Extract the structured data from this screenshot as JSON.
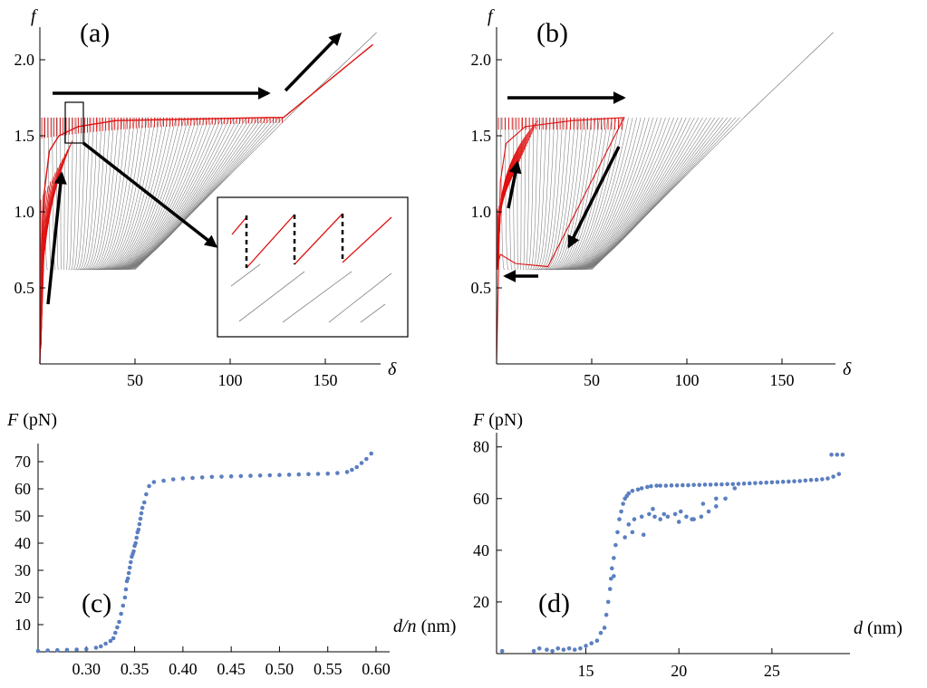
{
  "chart_data": [
    {
      "panel": "a",
      "type": "line",
      "panel_label": "(a)",
      "xlabel": "δ",
      "ylabel": "f",
      "xticks": [
        "50",
        "100",
        "150"
      ],
      "yticks": [
        "0.5",
        "1.0",
        "1.5",
        "2.0"
      ],
      "xlim": [
        0,
        180
      ],
      "ylim": [
        0,
        2.2
      ],
      "description_series": [
        {
          "name": "family of equilibrium branches",
          "color": "#6e6e6e",
          "count": 60,
          "plateau": 1.62,
          "lower_plateau": 0.62,
          "onset_max": 130,
          "merge_start": 50
        },
        {
          "name": "loading path (red)",
          "color": "#e01010",
          "x": [
            0,
            2,
            5,
            10,
            20,
            40,
            80,
            120,
            128,
            175
          ],
          "y": [
            0,
            1.1,
            1.4,
            1.5,
            1.56,
            1.6,
            1.61,
            1.62,
            1.62,
            2.1
          ]
        }
      ],
      "inset": true
    },
    {
      "panel": "b",
      "type": "line",
      "panel_label": "(b)",
      "xlabel": "δ",
      "ylabel": "f",
      "xticks": [
        "50",
        "100",
        "150"
      ],
      "yticks": [
        "0.5",
        "1.0",
        "1.5",
        "2.0"
      ],
      "xlim": [
        0,
        180
      ],
      "ylim": [
        0,
        2.2
      ],
      "description_series": [
        {
          "name": "family of equilibrium branches",
          "color": "#6e6e6e",
          "count": 60,
          "plateau": 1.62,
          "lower_plateau": 0.62,
          "onset_max": 130,
          "merge_start": 50
        },
        {
          "name": "hysteresis loop (red)",
          "color": "#e01010",
          "x": [
            0,
            2,
            5,
            15,
            40,
            67,
            27,
            10,
            2,
            0
          ],
          "y": [
            0,
            1.2,
            1.45,
            1.56,
            1.6,
            1.62,
            0.64,
            0.66,
            0.72,
            0.62
          ]
        }
      ]
    },
    {
      "panel": "c",
      "type": "scatter",
      "panel_label": "(c)",
      "xlabel_var": "d/n",
      "xlabel_unit": "(nm)",
      "ylabel_var": "F",
      "ylabel_unit": "(pN)",
      "xticks": [
        "0.30",
        "0.35",
        "0.40",
        "0.45",
        "0.50",
        "0.55",
        "0.60"
      ],
      "yticks": [
        "10",
        "20",
        "30",
        "40",
        "50",
        "60",
        "70"
      ],
      "xlim": [
        0.25,
        0.6
      ],
      "ylim": [
        0,
        75
      ],
      "x": [
        0.25,
        0.26,
        0.27,
        0.28,
        0.29,
        0.3,
        0.31,
        0.315,
        0.32,
        0.325,
        0.328,
        0.33,
        0.332,
        0.334,
        0.336,
        0.338,
        0.34,
        0.341,
        0.342,
        0.343,
        0.344,
        0.345,
        0.346,
        0.347,
        0.348,
        0.349,
        0.35,
        0.351,
        0.352,
        0.353,
        0.354,
        0.355,
        0.356,
        0.357,
        0.358,
        0.36,
        0.362,
        0.365,
        0.37,
        0.38,
        0.39,
        0.4,
        0.41,
        0.42,
        0.43,
        0.44,
        0.45,
        0.46,
        0.47,
        0.48,
        0.49,
        0.5,
        0.51,
        0.52,
        0.53,
        0.54,
        0.55,
        0.56,
        0.57,
        0.575,
        0.58,
        0.585,
        0.59,
        0.595
      ],
      "y": [
        0.3,
        0.5,
        0.6,
        0.7,
        0.8,
        1,
        1.5,
        2,
        3,
        4,
        5,
        7,
        9,
        11,
        14,
        17,
        20,
        23,
        26,
        27,
        29,
        31,
        33,
        35,
        36,
        37,
        39,
        40,
        42,
        44,
        45,
        47,
        49,
        51,
        53,
        55,
        58,
        61,
        62.5,
        63,
        63.5,
        63.8,
        64,
        64.2,
        64.4,
        64.5,
        64.6,
        64.7,
        64.8,
        64.9,
        65,
        65.1,
        65.2,
        65.3,
        65.4,
        65.5,
        65.6,
        65.8,
        66.2,
        67,
        68,
        69.5,
        71,
        73
      ]
    },
    {
      "panel": "d",
      "type": "scatter",
      "panel_label": "(d)",
      "xlabel_var": "d",
      "xlabel_unit": "(nm)",
      "ylabel_var": "F",
      "ylabel_unit": "(pN)",
      "xticks": [
        "15",
        "20",
        "25"
      ],
      "yticks": [
        "20",
        "40",
        "60",
        "80"
      ],
      "xlim": [
        10.2,
        29
      ],
      "ylim": [
        0,
        82
      ],
      "x": [
        10.5,
        12.2,
        12.5,
        12.9,
        13.2,
        13.5,
        13.8,
        14.1,
        14.4,
        14.7,
        15.0,
        15.3,
        15.6,
        15.8,
        16.0,
        16.1,
        16.2,
        16.3,
        16.35,
        16.4,
        16.5,
        16.6,
        16.7,
        16.8,
        16.9,
        17.0,
        17.1,
        17.2,
        17.3,
        17.5,
        17.8,
        18.0,
        18.3,
        18.5,
        18.8,
        19.0,
        19.3,
        19.6,
        19.9,
        20.2,
        20.5,
        20.8,
        21.1,
        21.4,
        21.7,
        22.0,
        22.3,
        22.6,
        22.9,
        23.2,
        23.5,
        23.8,
        24.1,
        24.4,
        24.7,
        25.0,
        25.3,
        25.6,
        25.9,
        26.2,
        26.5,
        26.8,
        27.1,
        27.4,
        27.7,
        28.0,
        28.3,
        28.6,
        17.3,
        17.6,
        18.0,
        18.4,
        18.7,
        19.0,
        19.4,
        19.8,
        20.1,
        20.4,
        20.8,
        21.2,
        21.6,
        22.0,
        22.5,
        23.0,
        17.1,
        17.5,
        18.1,
        18.6,
        19.2,
        20.0,
        20.7,
        21.3,
        22.0,
        28.2,
        28.5,
        28.8,
        16.5
      ],
      "y": [
        1,
        1,
        2,
        1.5,
        1,
        2,
        1.5,
        2,
        1.5,
        2,
        3,
        4,
        5,
        8,
        10,
        15,
        20,
        25,
        29,
        33,
        37,
        42,
        47,
        52,
        55,
        58,
        60,
        61,
        62,
        63,
        63.5,
        64,
        64.5,
        64.8,
        65,
        65,
        65,
        65.1,
        65.1,
        65.2,
        65.2,
        65.3,
        65.3,
        65.4,
        65.4,
        65.5,
        65.5,
        65.6,
        65.6,
        65.7,
        65.8,
        65.9,
        66,
        66.1,
        66.2,
        66.3,
        66.4,
        66.5,
        66.6,
        66.7,
        66.8,
        67,
        67.2,
        67.3,
        67.5,
        67.8,
        68.5,
        69.5,
        50,
        52,
        53,
        54,
        53,
        52,
        53,
        54,
        55,
        53,
        52,
        53,
        55,
        57,
        60,
        64,
        45,
        47,
        46,
        56,
        54,
        51,
        52,
        58,
        60,
        77,
        77,
        77,
        30
      ]
    }
  ]
}
